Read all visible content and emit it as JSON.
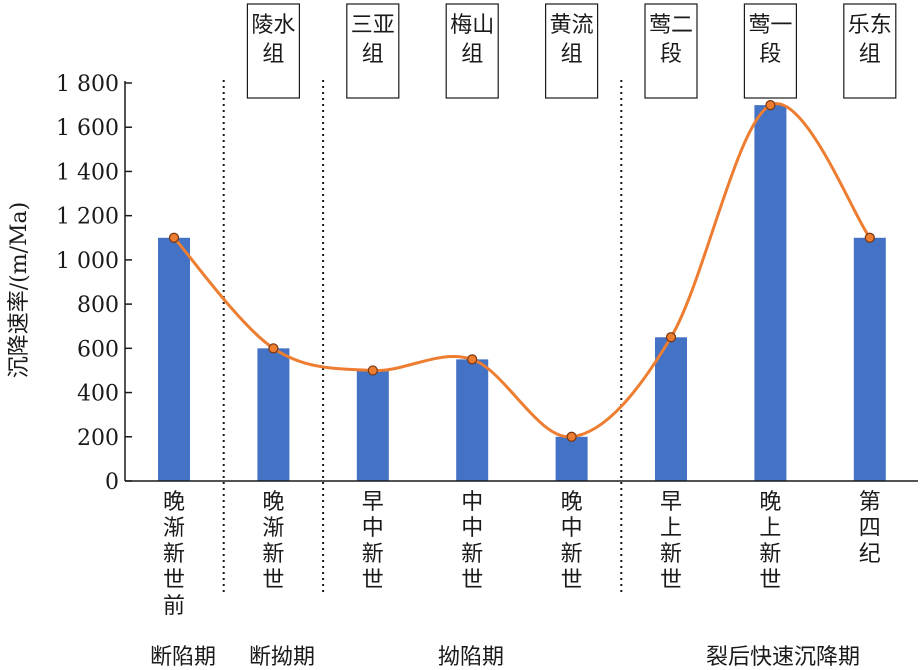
{
  "chart_data": {
    "type": "bar",
    "ylabel": "沉降速率/(m/Ma)",
    "ylim": [
      0,
      1800
    ],
    "yticks": [
      0,
      200,
      400,
      600,
      800,
      1000,
      1200,
      1400,
      1600,
      1800
    ],
    "ytick_labels": [
      "0",
      "200",
      "400",
      "600",
      "800",
      "1 000",
      "1 200",
      "1 400",
      "1 600",
      "1 800"
    ],
    "categories": [
      "晚渐新世前",
      "晚渐新世",
      "早中新世",
      "中中新世",
      "晚中新世",
      "早上新世",
      "晚上新世",
      "第四纪"
    ],
    "values": [
      1100,
      600,
      500,
      550,
      200,
      650,
      1700,
      1100
    ],
    "trend_line": true,
    "formations": [
      {
        "label": "陵水组",
        "category_index": 1
      },
      {
        "label": "三亚组",
        "category_index": 2
      },
      {
        "label": "梅山组",
        "category_index": 3
      },
      {
        "label": "黄流组",
        "category_index": 4
      },
      {
        "label": "莺二段",
        "category_index": 5
      },
      {
        "label": "莺一段",
        "category_index": 6
      },
      {
        "label": "乐东组",
        "category_index": 7
      }
    ],
    "phases": [
      {
        "label": "断陷期",
        "from": 0,
        "to": 0
      },
      {
        "label": "断拗期",
        "from": 1,
        "to": 1
      },
      {
        "label": "拗陷期",
        "from": 2,
        "to": 4
      },
      {
        "label": "裂后快速沉降期",
        "from": 5,
        "to": 7
      }
    ],
    "dividers_after_category": [
      0,
      1,
      4
    ],
    "colors": {
      "bar": "#4472c4",
      "line": "#ed7d31",
      "marker_fill": "#ed7d31",
      "marker_stroke": "#7a3510"
    }
  }
}
